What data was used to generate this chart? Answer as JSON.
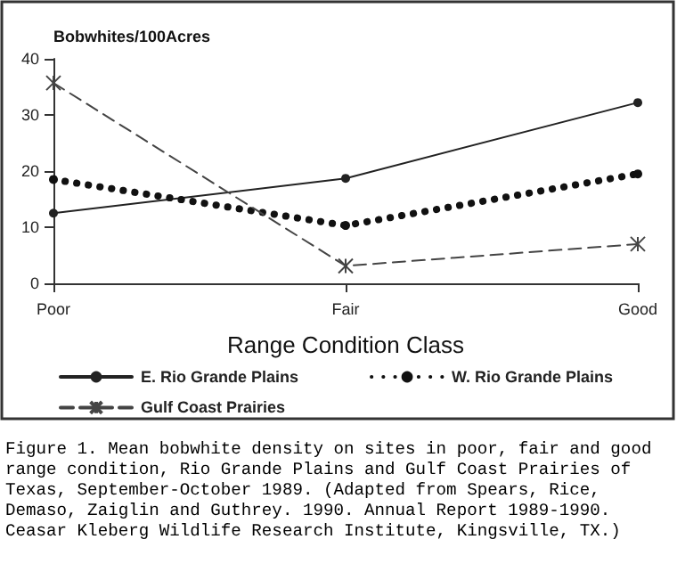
{
  "chart_data": {
    "type": "line",
    "xlabel": "Range Condition Class",
    "ylabel": "Bobwhites/100Acres",
    "categories": [
      "Poor",
      "Fair",
      "Good"
    ],
    "series": [
      {
        "name": "E. Rio Grande Plains",
        "color": "#222222",
        "values": [
          12.5,
          18.7,
          32.2
        ],
        "marker": "circle",
        "line_style": "solid"
      },
      {
        "name": "W. Rio Grande Plains",
        "color": "#111111",
        "values": [
          18.5,
          10.3,
          19.5
        ],
        "marker": "circle",
        "line_style": "dotted"
      },
      {
        "name": "Gulf Coast Prairies",
        "color": "#444444",
        "values": [
          35.7,
          3.1,
          7.0
        ],
        "marker": "cross",
        "line_style": "dashed"
      }
    ],
    "ylim": [
      0,
      40
    ],
    "yticks": [
      0,
      10,
      20,
      30,
      40
    ],
    "grid": false,
    "legend": "bottom",
    "annotations": [
      "Figure 1. Mean bobwhite density on sites in poor, fair and good range condition, Rio Grande Plains and Gulf Coast Prairies of Texas, September-October 1989. (Adapted from Spears, Rice, Demaso, Zaiglin and Guthrey. 1990. Annual Report 1989-1990. Ceasar Kleberg Wildlife Research Institute, Kingsville, TX.)"
    ]
  }
}
